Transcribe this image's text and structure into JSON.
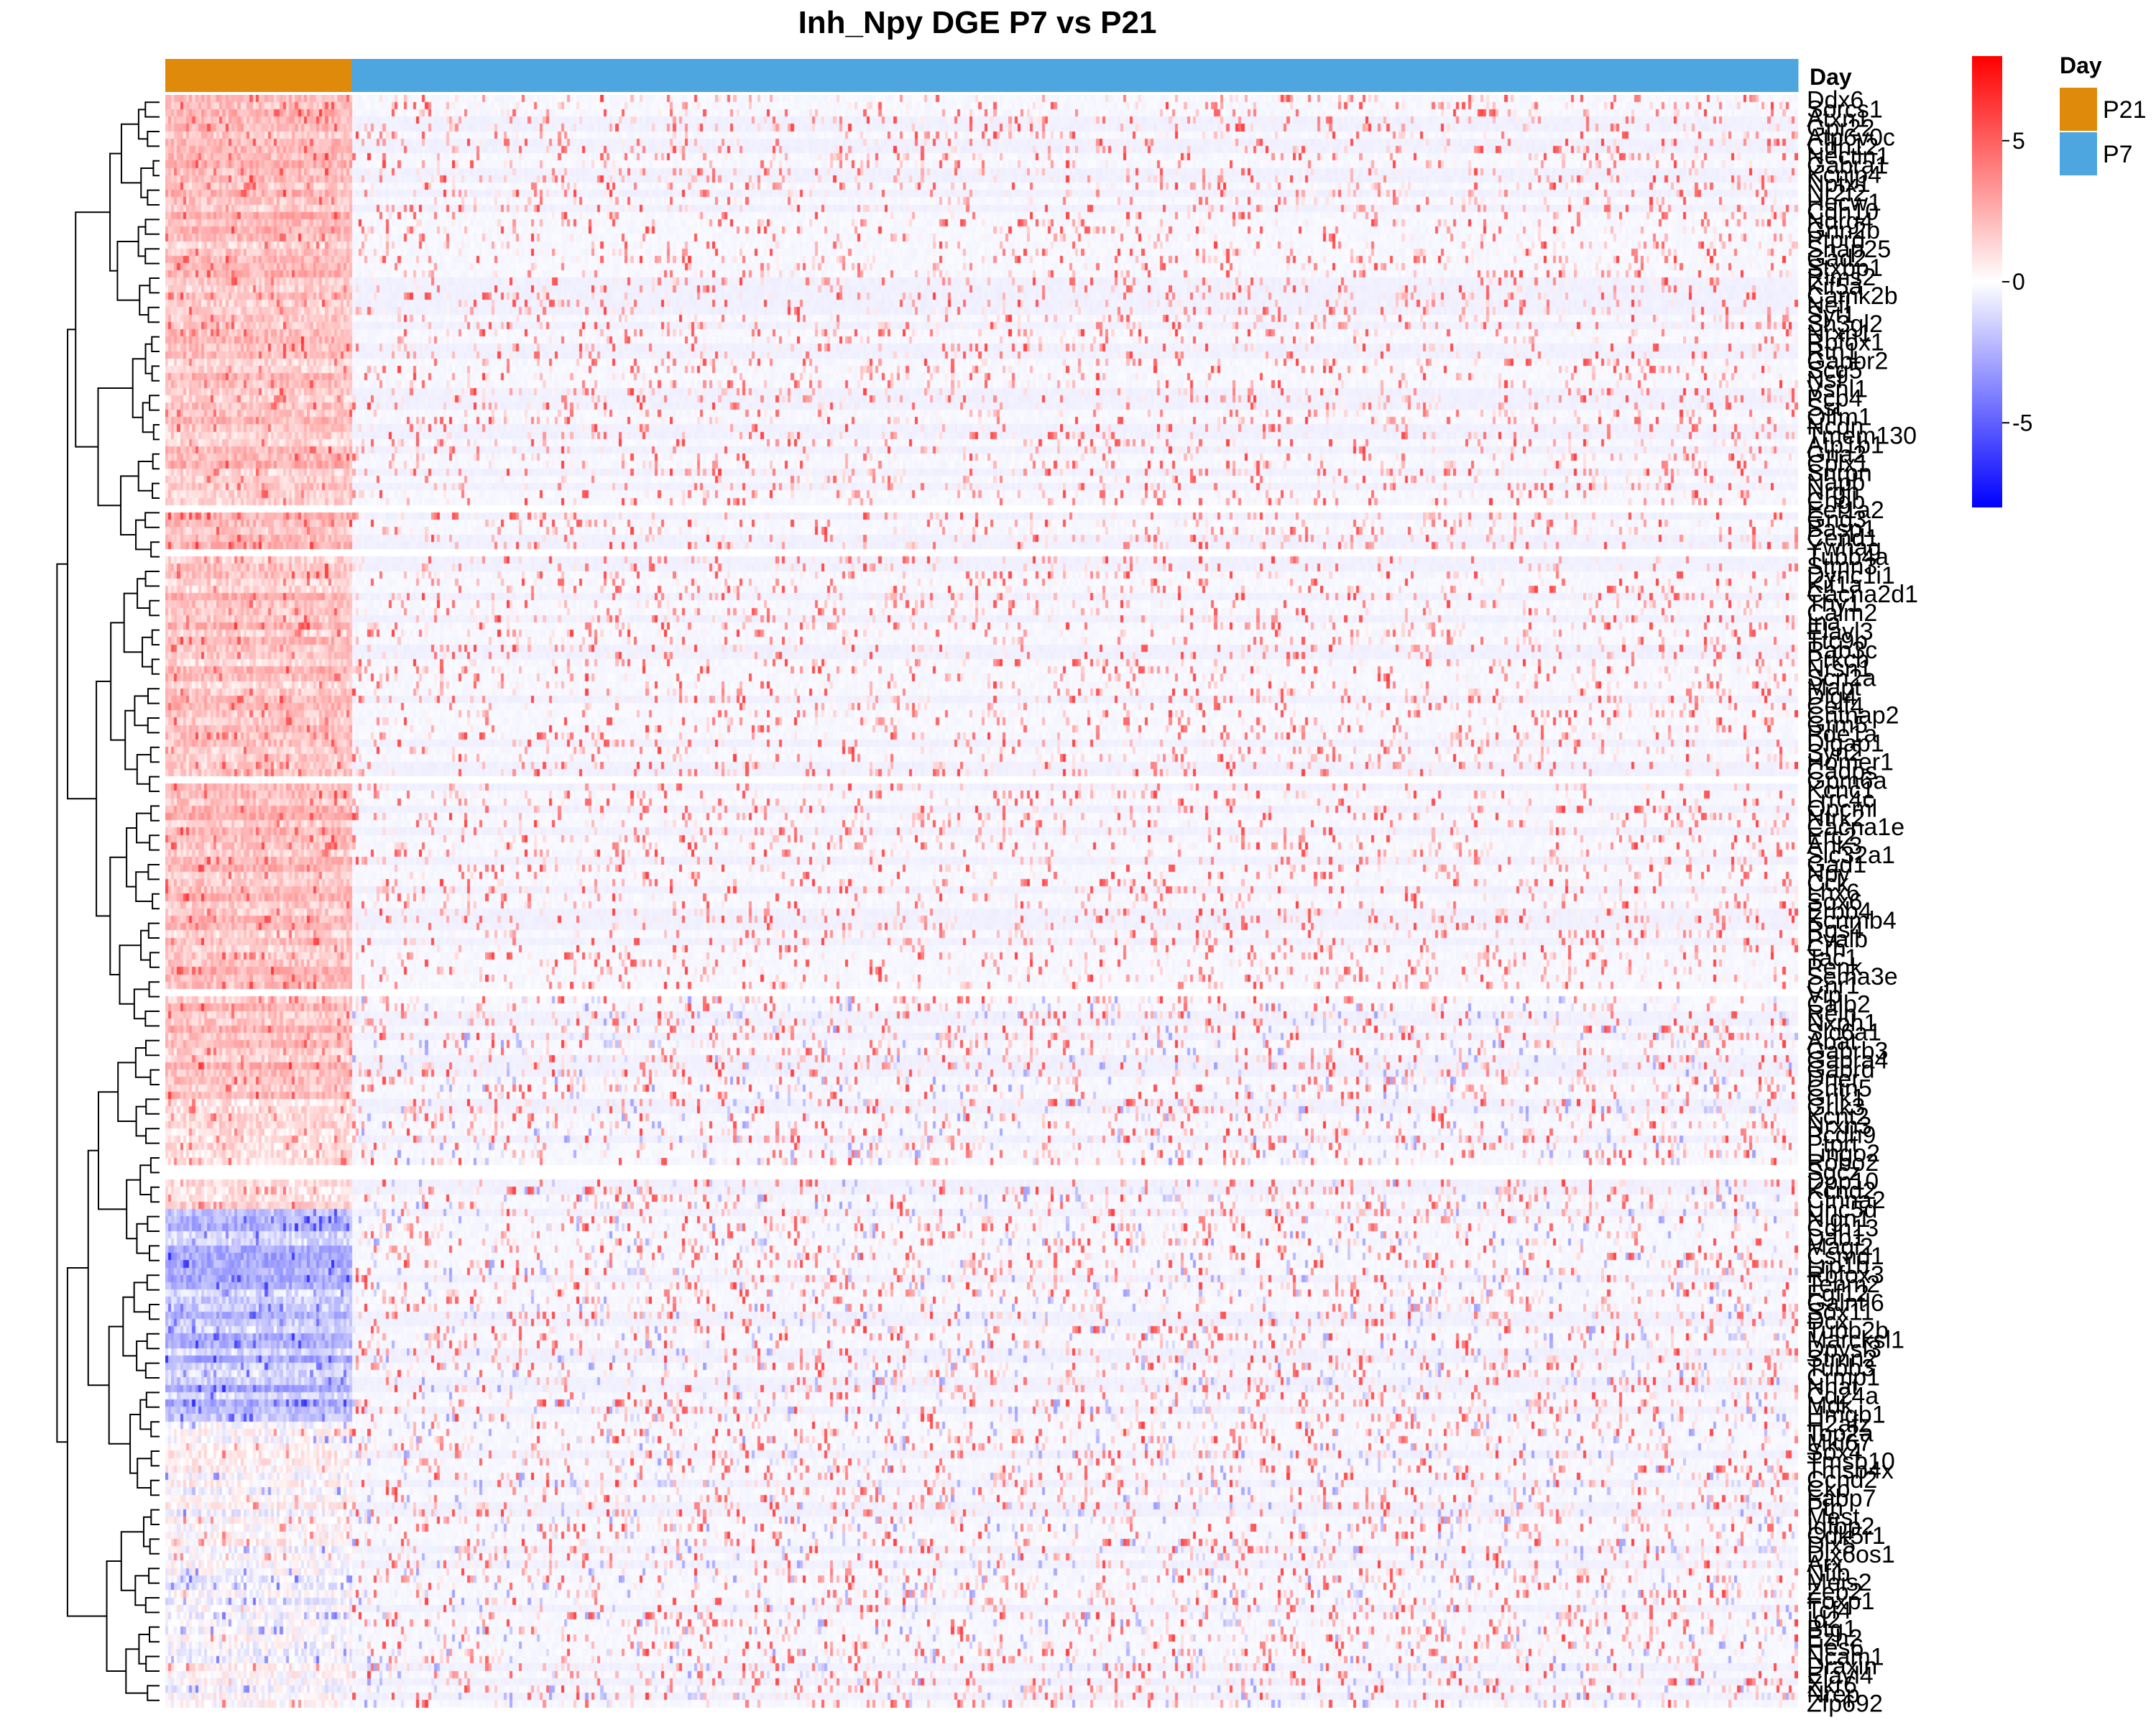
{
  "chart_data": {
    "type": "heatmap",
    "title": "Inh_Npy DGE P7 vs P21",
    "annotation": {
      "name": "Day",
      "legend_title": "Day",
      "groups": [
        {
          "label": "P21",
          "color": "#E08A0B",
          "fraction_of_columns": 0.114
        },
        {
          "label": "P7",
          "color": "#4EA6E0",
          "fraction_of_columns": 0.886
        }
      ]
    },
    "color_scale": {
      "min": -8,
      "mid": 0,
      "max": 8,
      "low_color": "#0000FF",
      "mid_color": "#FFFFFF",
      "high_color": "#FF0000",
      "ticks": [
        5,
        0,
        -5
      ]
    },
    "row_labels": [
      "Ddx6",
      "Sorcs1",
      "Atxn1",
      "Gpr22",
      "Atp6v0c",
      "Cdh12",
      "Nectin1",
      "Gabra1",
      "Kcnip4",
      "Nptx1",
      "Nr2f2",
      "Hecw1",
      "Cdh10",
      "Ndrg4",
      "Grin2b",
      "Ptprd",
      "Snap25",
      "Gad2",
      "Stxbp1",
      "Rims2",
      "Kif5a",
      "Camk2b",
      "Nefl",
      "Syt1",
      "Sh3gl2",
      "Nrxn1",
      "Rbfox1",
      "Rtn1",
      "Gabbr2",
      "Scg5",
      "Nsf",
      "Vsnl1",
      "Pcp4",
      "Sst",
      "Olfm1",
      "Ncdn",
      "Tmem130",
      "Atp1b1",
      "Gria2",
      "Cplx1",
      "Snrpn",
      "Napb",
      "Nrgn",
      "Chgb",
      "Eef1a2",
      "Gng3",
      "Basp1",
      "Cend1",
      "Ywhag",
      "Tubb4a",
      "Stmn3",
      "Dync1i1",
      "Kif1a",
      "Cacna2d1",
      "Thy1",
      "Calm2",
      "Ina",
      "Elavl3",
      "Ttc9b",
      "Rab3c",
      "Prkcb",
      "Nrsn1",
      "Scn2a",
      "Mapt",
      "Dlg4",
      "Celf4",
      "Cntnap2",
      "Grm5",
      "Pde1a",
      "Dlgap1",
      "Syn2",
      "Homer1",
      "Cadps",
      "Gpm6a",
      "Kcnc1",
      "Lrrc4c",
      "Opcml",
      "Ntrk2",
      "Cacna1e",
      "Erc2",
      "Ank3",
      "Slc32a1",
      "Gad1",
      "Npy",
      "Cck",
      "Lhx6",
      "Sox6",
      "Erbb4",
      "Kcnmb4",
      "Rgs4",
      "Pvalb",
      "Crh",
      "Tac1",
      "Penk",
      "Sema3e",
      "Cnr1",
      "Vip",
      "Calb2",
      "Reln",
      "Nxph1",
      "Slc6a1",
      "Abat",
      "Gabrb3",
      "Gabra4",
      "Gabrd",
      "Dner",
      "Cntn5",
      "Grik1",
      "Grik3",
      "Kcnt2",
      "Nrxn3",
      "Pcdh9",
      "Ptprt",
      "Lingo2",
      "Robo2",
      "Sgcz",
      "Dpp10",
      "Kcnd2",
      "Ctnna2",
      "Unc5d",
      "Nlgn1",
      "Cdh13",
      "Dab1",
      "Magi2",
      "Csmd1",
      "Lrp1b",
      "Rbfox3",
      "Tenm2",
      "Fgf12",
      "Galntl6",
      "Sox11",
      "Dcx",
      "Tubb2b",
      "Marcksl1",
      "Dpysl3",
      "Stmn2",
      "Tubb3",
      "Crmp1",
      "Nnat",
      "Cd24a",
      "Mdk",
      "Hmgb1",
      "H2afz",
      "Top2a",
      "Mki67",
      "Sox4",
      "Tmsb10",
      "Tmsb4x",
      "Ccnd2",
      "Ckb",
      "Fabp7",
      "Ptn",
      "Mest",
      "Igfbp2",
      "Cdk5r1",
      "Dlx5",
      "Dlx6os1",
      "Arx",
      "Nfib",
      "Meis2",
      "Zeb2",
      "Foxp1",
      "Tcf4",
      "Id2",
      "Btg1",
      "Ezh2",
      "Hes6",
      "Ncam1",
      "Draxin",
      "Elavl4",
      "Xkr6",
      "Nrep",
      "Zfp692"
    ],
    "row_labels_note": "rendered as overlapping gene labels"
  }
}
